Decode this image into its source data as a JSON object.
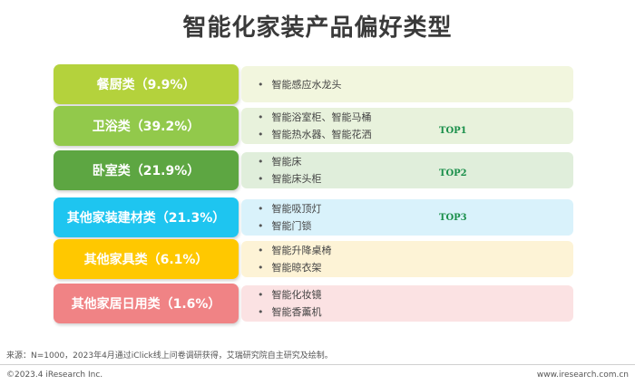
{
  "title": "智能化家装产品偏好类型",
  "rows": [
    {
      "label": "餐厨类（9.9%）",
      "color": "#b4d23c",
      "panel": "#f2f6de",
      "items": [
        "智能感应水龙头"
      ]
    },
    {
      "label": "卫浴类（39.2%）",
      "color": "#92c94b",
      "panel": "#e8f2dc",
      "items": [
        "智能浴室柜、智能马桶",
        "智能热水器、智能花洒"
      ],
      "top": "TOP1"
    },
    {
      "label": "卧室类（21.9%）",
      "color": "#5da642",
      "panel": "#e0eedb",
      "items": [
        "智能床",
        "智能床头柜"
      ],
      "top": "TOP2"
    },
    {
      "label": "其他家装建材类（21.3%）",
      "color": "#1ec5f0",
      "panel": "#d9f2fb",
      "items": [
        "智能吸顶灯",
        "智能门锁"
      ],
      "top": "TOP3"
    },
    {
      "label": "其他家具类（6.1%）",
      "color": "#ffc800",
      "panel": "#fdf3d6",
      "items": [
        "智能升降桌椅",
        "智能晾衣架"
      ]
    },
    {
      "label": "其他家居日用类（1.6%）",
      "color": "#f08385",
      "panel": "#fbe2e3",
      "items": [
        "智能化妆镜",
        "智能香薰机"
      ]
    }
  ],
  "source": "来源：N=1000，2023年4月通过iClick线上问卷调研获得，艾瑞研究院自主研究及绘制。",
  "copyright": "©2023.4 iResearch Inc.",
  "website": "www.iresearch.com.cn"
}
